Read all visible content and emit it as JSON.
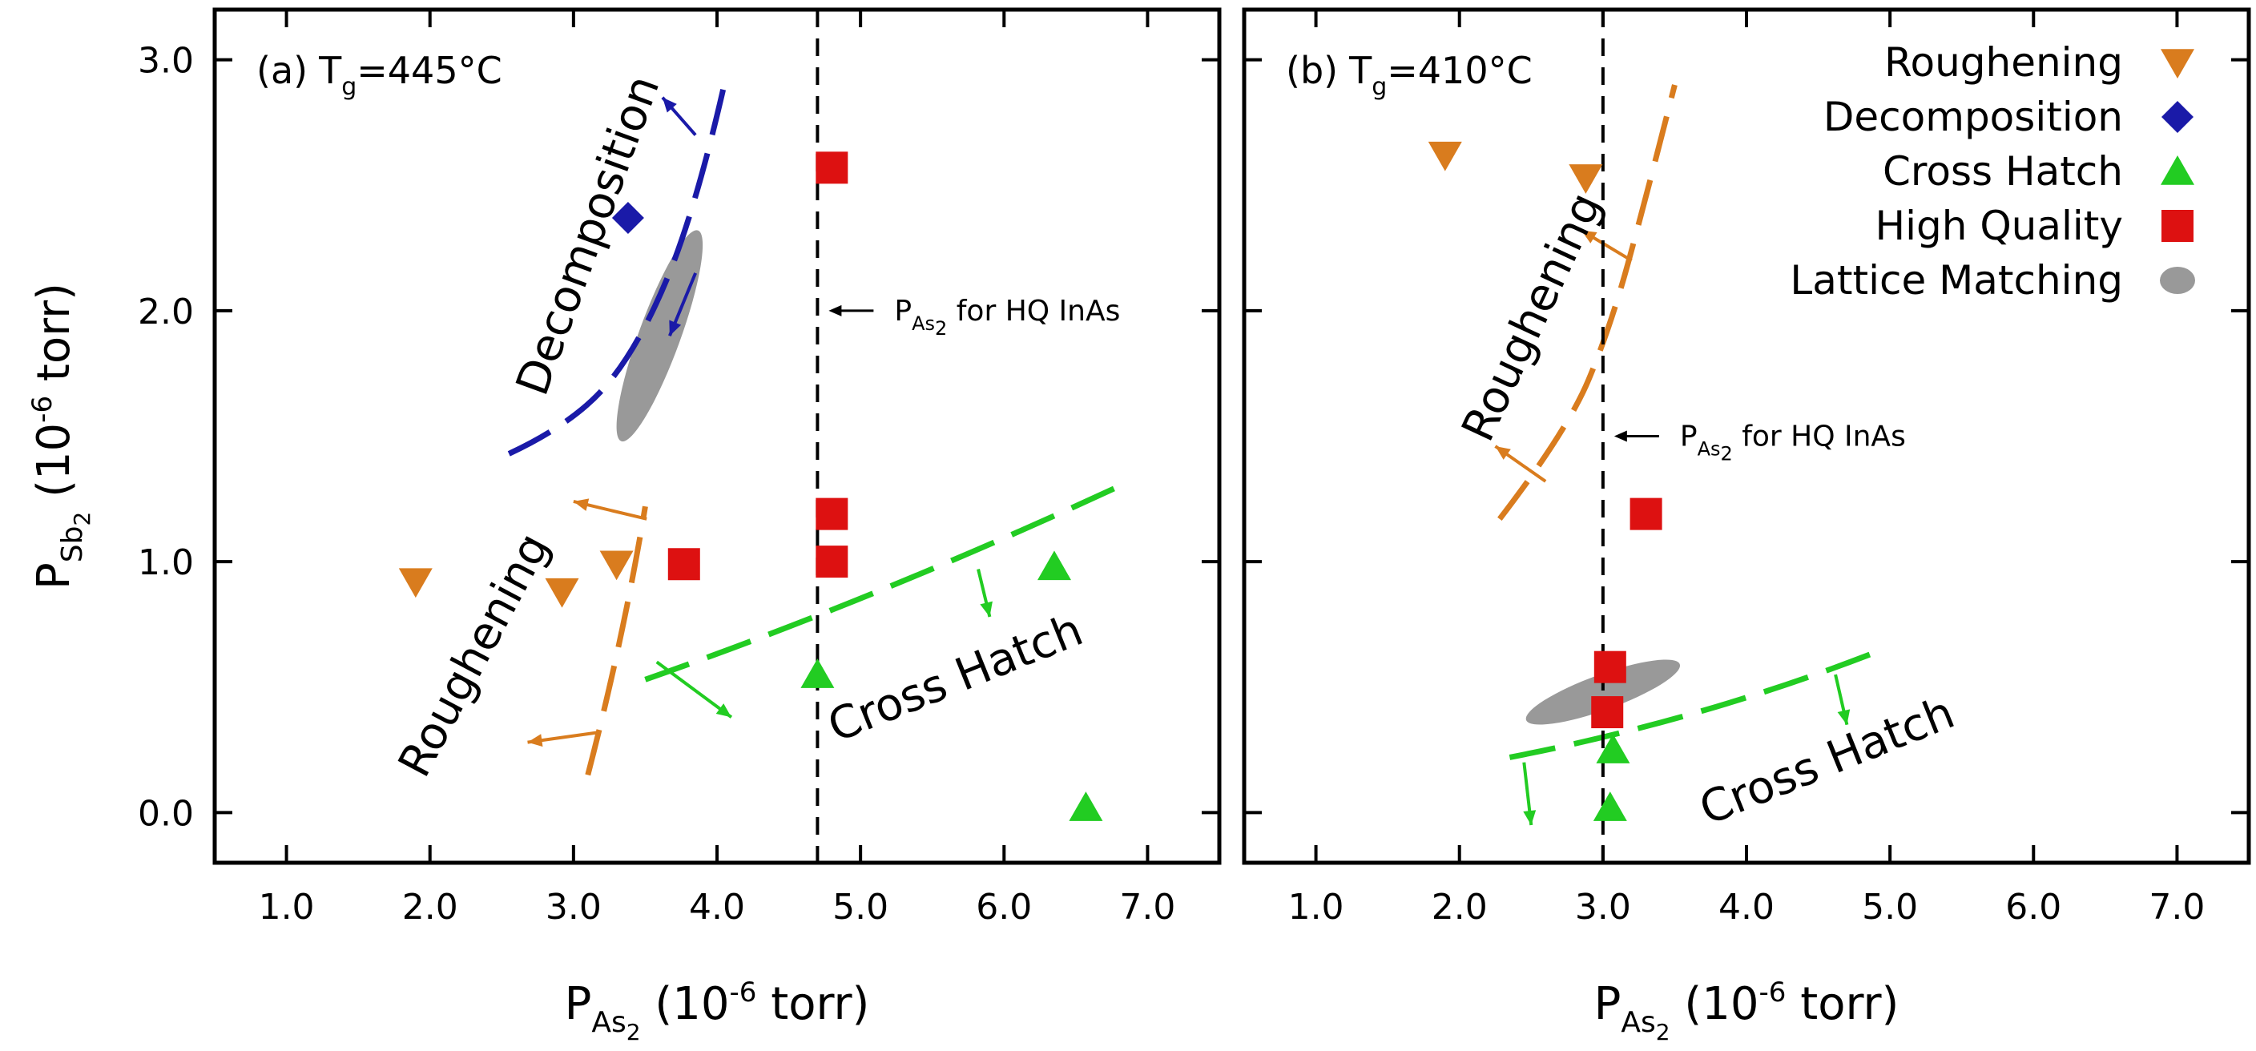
{
  "chart_data": [
    {
      "type": "scatter",
      "panel_label": "(a)",
      "temp_symbol": "T",
      "temp_subscript": "g",
      "temp_value": "=445°C",
      "xlabel": {
        "main": "P",
        "sub": "As",
        "subsub": "2",
        "unit": " (10",
        "exp": "-6",
        "tail": " torr)"
      },
      "ylabel": {
        "main": "P",
        "sub": "Sb",
        "subsub": "2",
        "unit": " (10",
        "exp": "-6",
        "tail": " torr)"
      },
      "xlim": [
        0.5,
        7.5
      ],
      "ylim": [
        -0.2,
        3.2
      ],
      "xticks": [
        1.0,
        2.0,
        3.0,
        4.0,
        5.0,
        6.0,
        7.0
      ],
      "xtick_labels": [
        "1.0",
        "2.0",
        "3.0",
        "4.0",
        "5.0",
        "6.0",
        "7.0"
      ],
      "yticks": [
        0.0,
        1.0,
        2.0,
        3.0
      ],
      "ytick_labels": [
        "0.0",
        "1.0",
        "2.0",
        "3.0"
      ],
      "series": [
        {
          "name": "Roughening",
          "marker": "triangle-down",
          "color": "#d97c1e",
          "points": [
            [
              1.9,
              0.92
            ],
            [
              2.92,
              0.88
            ],
            [
              3.3,
              0.99
            ]
          ]
        },
        {
          "name": "Decomposition",
          "marker": "diamond",
          "color": "#1a1aa8",
          "points": [
            [
              3.38,
              2.37
            ]
          ]
        },
        {
          "name": "Cross Hatch",
          "marker": "triangle-up",
          "color": "#22cc22",
          "points": [
            [
              4.7,
              0.55
            ],
            [
              6.35,
              0.98
            ],
            [
              6.57,
              0.02
            ]
          ]
        },
        {
          "name": "High Quality",
          "marker": "square",
          "color": "#dd1111",
          "points": [
            [
              3.77,
              0.99
            ],
            [
              4.8,
              2.57
            ],
            [
              4.8,
              1.19
            ],
            [
              4.8,
              1.0
            ]
          ]
        }
      ],
      "lattice_matching": {
        "center": [
          3.6,
          1.9
        ],
        "color": "#999999"
      },
      "reference_line": {
        "x": 4.7,
        "label_main": "P",
        "label_sub": "As",
        "label_subsub": "2",
        "label_tail": " for HQ InAs",
        "label_y": 2.0
      },
      "boundaries": [
        {
          "name": "Decomposition",
          "color": "#1a1aa8",
          "points": [
            [
              2.55,
              1.43
            ],
            [
              3.0,
              1.55
            ],
            [
              3.45,
              1.85
            ],
            [
              3.85,
              2.4
            ],
            [
              4.05,
              2.9
            ]
          ]
        },
        {
          "name": "Roughening",
          "color": "#d97c1e",
          "points": [
            [
              3.1,
              0.15
            ],
            [
              3.35,
              0.7
            ],
            [
              3.5,
              1.22
            ]
          ]
        },
        {
          "name": "Cross Hatch",
          "color": "#22cc22",
          "points": [
            [
              3.5,
              0.53
            ],
            [
              5.1,
              0.85
            ],
            [
              6.8,
              1.3
            ]
          ]
        }
      ],
      "region_labels": [
        {
          "text": "Decomposition",
          "color": "#1a1aa8",
          "x": 3.2,
          "y": 2.28,
          "angle": -70
        },
        {
          "text": "Roughening",
          "color": "#d97c1e",
          "x": 2.4,
          "y": 0.6,
          "angle": -62
        },
        {
          "text": "Cross Hatch",
          "color": "#22cc22",
          "x": 5.7,
          "y": 0.48,
          "angle": -22
        }
      ]
    },
    {
      "type": "scatter",
      "panel_label": "(b)",
      "temp_symbol": "T",
      "temp_subscript": "g",
      "temp_value": "=410°C",
      "xlabel": {
        "main": "P",
        "sub": "As",
        "subsub": "2",
        "unit": " (10",
        "exp": "-6",
        "tail": " torr)"
      },
      "xlim": [
        0.5,
        7.5
      ],
      "ylim": [
        -0.2,
        3.2
      ],
      "xticks": [
        1.0,
        2.0,
        3.0,
        4.0,
        5.0,
        6.0,
        7.0
      ],
      "xtick_labels": [
        "1.0",
        "2.0",
        "3.0",
        "4.0",
        "5.0",
        "6.0",
        "7.0"
      ],
      "yticks": [
        0.0,
        1.0,
        2.0,
        3.0
      ],
      "series": [
        {
          "name": "Roughening",
          "marker": "triangle-down",
          "color": "#d97c1e",
          "points": [
            [
              1.9,
              2.62
            ],
            [
              2.88,
              2.53
            ]
          ]
        },
        {
          "name": "Cross Hatch",
          "marker": "triangle-up",
          "color": "#22cc22",
          "points": [
            [
              3.07,
              0.25
            ],
            [
              3.05,
              0.02
            ]
          ]
        },
        {
          "name": "High Quality",
          "marker": "square",
          "color": "#dd1111",
          "points": [
            [
              3.3,
              1.19
            ],
            [
              3.05,
              0.58
            ],
            [
              3.03,
              0.4
            ]
          ]
        }
      ],
      "lattice_matching": {
        "center": [
          3.0,
          0.48
        ],
        "color": "#999999"
      },
      "reference_line": {
        "x": 3.0,
        "label_main": "P",
        "label_sub": "As",
        "label_subsub": "2",
        "label_tail": " for HQ InAs",
        "label_y": 1.5
      },
      "boundaries": [
        {
          "name": "Roughening",
          "color": "#d97c1e",
          "points": [
            [
              2.28,
              1.17
            ],
            [
              2.75,
              1.52
            ],
            [
              3.05,
              1.93
            ],
            [
              3.3,
              2.45
            ],
            [
              3.5,
              2.9
            ]
          ]
        },
        {
          "name": "Cross Hatch",
          "color": "#22cc22",
          "points": [
            [
              2.35,
              0.22
            ],
            [
              3.7,
              0.37
            ],
            [
              4.95,
              0.65
            ]
          ]
        }
      ],
      "region_labels": [
        {
          "text": "Roughening",
          "color": "#d97c1e",
          "x": 2.6,
          "y": 1.95,
          "angle": -65
        },
        {
          "text": "Cross Hatch",
          "color": "#22cc22",
          "x": 4.6,
          "y": 0.15,
          "angle": -22
        }
      ]
    }
  ],
  "legend": {
    "placement": "top-right",
    "items": [
      {
        "label": "Roughening",
        "marker": "triangle-down",
        "color": "#d97c1e"
      },
      {
        "label": "Decomposition",
        "marker": "diamond",
        "color": "#1a1aa8"
      },
      {
        "label": "Cross Hatch",
        "marker": "triangle-up",
        "color": "#22cc22"
      },
      {
        "label": "High Quality",
        "marker": "square",
        "color": "#dd1111"
      },
      {
        "label": "Lattice Matching",
        "marker": "ellipse",
        "color": "#999999"
      }
    ]
  }
}
